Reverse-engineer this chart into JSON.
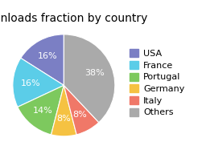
{
  "title": "Downloads fraction by country",
  "labels": [
    "USA",
    "France",
    "Portugal",
    "Germany",
    "Italy",
    "Others"
  ],
  "values": [
    16,
    16,
    14,
    8,
    8,
    38
  ],
  "colors": [
    "#7b7fc4",
    "#5bcde8",
    "#7dc95e",
    "#f5c242",
    "#f07868",
    "#aaaaaa"
  ],
  "text_color": "white",
  "startangle": 90,
  "title_fontsize": 10,
  "label_fontsize": 8,
  "legend_fontsize": 8
}
